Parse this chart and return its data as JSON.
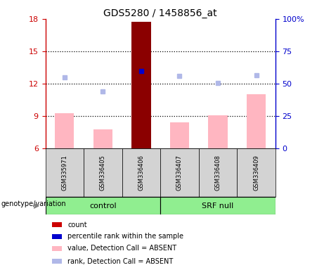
{
  "title": "GDS5280 / 1458856_at",
  "samples": [
    "GSM335971",
    "GSM336405",
    "GSM336406",
    "GSM336407",
    "GSM336408",
    "GSM336409"
  ],
  "ylim_left": [
    6,
    18
  ],
  "ylim_right": [
    0,
    100
  ],
  "yticks_left": [
    6,
    9,
    12,
    15,
    18
  ],
  "yticks_right": [
    0,
    25,
    50,
    75,
    100
  ],
  "ytick_labels_right": [
    "0",
    "25",
    "50",
    "75",
    "100%"
  ],
  "bar_values": [
    9.3,
    7.8,
    17.7,
    8.4,
    9.1,
    11.0
  ],
  "bar_colors": [
    "#ffb6c1",
    "#ffb6c1",
    "#8b0000",
    "#ffb6c1",
    "#ffb6c1",
    "#ffb6c1"
  ],
  "scatter_rank_values": [
    12.6,
    11.3,
    13.2,
    12.7,
    12.1,
    12.8
  ],
  "scatter_rank_colors": [
    "#b0b8e8",
    "#b0b8e8",
    "#0000cd",
    "#b0b8e8",
    "#b0b8e8",
    "#b0b8e8"
  ],
  "left_axis_color": "#cc0000",
  "right_axis_color": "#0000cc",
  "bar_width": 0.5,
  "legend_items": [
    {
      "label": "count",
      "color": "#cc0000"
    },
    {
      "label": "percentile rank within the sample",
      "color": "#0000cd"
    },
    {
      "label": "value, Detection Call = ABSENT",
      "color": "#ffb6c1"
    },
    {
      "label": "rank, Detection Call = ABSENT",
      "color": "#b0b8e8"
    }
  ],
  "genotype_label": "genotype/variation",
  "group_ranges": [
    [
      0,
      2
    ],
    [
      3,
      5
    ]
  ],
  "group_names": [
    "control",
    "SRF null"
  ],
  "group_color": "#90ee90",
  "sample_box_color": "#d3d3d3",
  "title_fontsize": 10,
  "tick_fontsize": 8,
  "sample_fontsize": 6,
  "group_fontsize": 8,
  "legend_fontsize": 7,
  "geno_fontsize": 7
}
